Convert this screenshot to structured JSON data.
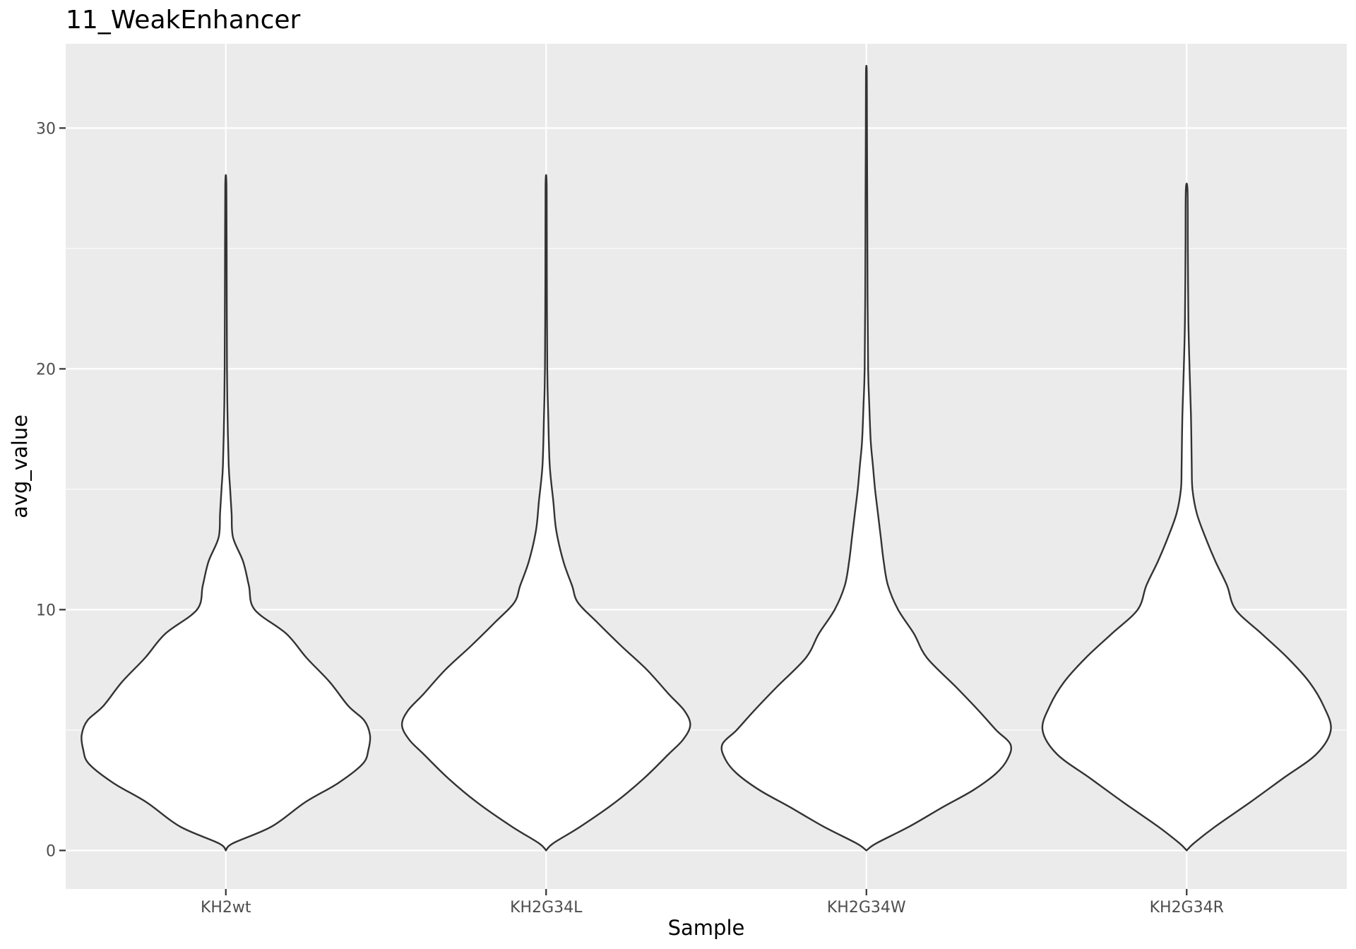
{
  "chart_data": {
    "type": "violin",
    "title": "11_WeakEnhancer",
    "xlabel": "Sample",
    "ylabel": "avg_value",
    "ylim": [
      -1.6,
      33.5
    ],
    "yticks": [
      0,
      10,
      20,
      30
    ],
    "ytick_labels": [
      "0",
      "10",
      "20",
      "30"
    ],
    "grid": true,
    "legend": "none",
    "background": "#ebebeb",
    "fill_color": "#ffffff",
    "line_color": "#333333",
    "categories": [
      "KH2wt",
      "KH2G34L",
      "KH2G34W",
      "KH2G34R"
    ],
    "series": [
      {
        "category": "KH2wt",
        "min": 0.05,
        "max": 27.6,
        "density_profile": [
          [
            0,
            0
          ],
          [
            0.3,
            0.05
          ],
          [
            1,
            0.32
          ],
          [
            2,
            0.55
          ],
          [
            2.8,
            0.78
          ],
          [
            3.6,
            0.95
          ],
          [
            4.2,
            0.99
          ],
          [
            4.8,
            1.0
          ],
          [
            5.4,
            0.96
          ],
          [
            6,
            0.85
          ],
          [
            7,
            0.72
          ],
          [
            8,
            0.56
          ],
          [
            9,
            0.42
          ],
          [
            10,
            0.2
          ],
          [
            11,
            0.16
          ],
          [
            12,
            0.12
          ],
          [
            13,
            0.05
          ],
          [
            14,
            0.04
          ],
          [
            15,
            0.03
          ],
          [
            16,
            0.02
          ],
          [
            18,
            0.012
          ],
          [
            20,
            0.008
          ],
          [
            24,
            0.006
          ],
          [
            27.6,
            0.004
          ]
        ]
      },
      {
        "category": "KH2G34L",
        "min": 0.05,
        "max": 27.6,
        "density_profile": [
          [
            0,
            0
          ],
          [
            0.3,
            0.05
          ],
          [
            1,
            0.24
          ],
          [
            2,
            0.48
          ],
          [
            3,
            0.68
          ],
          [
            4,
            0.85
          ],
          [
            4.6,
            0.95
          ],
          [
            5.2,
            1.0
          ],
          [
            5.8,
            0.96
          ],
          [
            6.5,
            0.85
          ],
          [
            7.5,
            0.7
          ],
          [
            8.5,
            0.52
          ],
          [
            9.5,
            0.35
          ],
          [
            10.3,
            0.22
          ],
          [
            11,
            0.18
          ],
          [
            12,
            0.12
          ],
          [
            13.3,
            0.07
          ],
          [
            14.5,
            0.05
          ],
          [
            16,
            0.025
          ],
          [
            18,
            0.015
          ],
          [
            20,
            0.008
          ],
          [
            24,
            0.005
          ],
          [
            27.6,
            0.004
          ]
        ]
      },
      {
        "category": "KH2G34W",
        "min": 0.15,
        "max": 32.3,
        "density_profile": [
          [
            0,
            0
          ],
          [
            0.3,
            0.07
          ],
          [
            1,
            0.3
          ],
          [
            1.8,
            0.53
          ],
          [
            2.5,
            0.74
          ],
          [
            3.2,
            0.9
          ],
          [
            3.8,
            0.98
          ],
          [
            4.4,
            1.0
          ],
          [
            5,
            0.9
          ],
          [
            5.8,
            0.78
          ],
          [
            6.8,
            0.62
          ],
          [
            8,
            0.42
          ],
          [
            9,
            0.33
          ],
          [
            10,
            0.22
          ],
          [
            11,
            0.15
          ],
          [
            12,
            0.12
          ],
          [
            13,
            0.1
          ],
          [
            14,
            0.08
          ],
          [
            15,
            0.06
          ],
          [
            16,
            0.045
          ],
          [
            17,
            0.03
          ],
          [
            18.5,
            0.02
          ],
          [
            20,
            0.012
          ],
          [
            23,
            0.008
          ],
          [
            27,
            0.006
          ],
          [
            30,
            0.004
          ],
          [
            32.3,
            0.003
          ]
        ]
      },
      {
        "category": "KH2G34R",
        "min": 0.05,
        "max": 27.4,
        "density_profile": [
          [
            0,
            0
          ],
          [
            0.3,
            0.05
          ],
          [
            1,
            0.2
          ],
          [
            2,
            0.44
          ],
          [
            3,
            0.67
          ],
          [
            4,
            0.9
          ],
          [
            5,
            1.0
          ],
          [
            6,
            0.95
          ],
          [
            7,
            0.85
          ],
          [
            8,
            0.7
          ],
          [
            9,
            0.52
          ],
          [
            10,
            0.34
          ],
          [
            11,
            0.28
          ],
          [
            12,
            0.2
          ],
          [
            13,
            0.13
          ],
          [
            14,
            0.07
          ],
          [
            15,
            0.04
          ],
          [
            16,
            0.035
          ],
          [
            18,
            0.03
          ],
          [
            20,
            0.02
          ],
          [
            22,
            0.012
          ],
          [
            25,
            0.008
          ],
          [
            27.4,
            0.006
          ]
        ]
      }
    ]
  }
}
